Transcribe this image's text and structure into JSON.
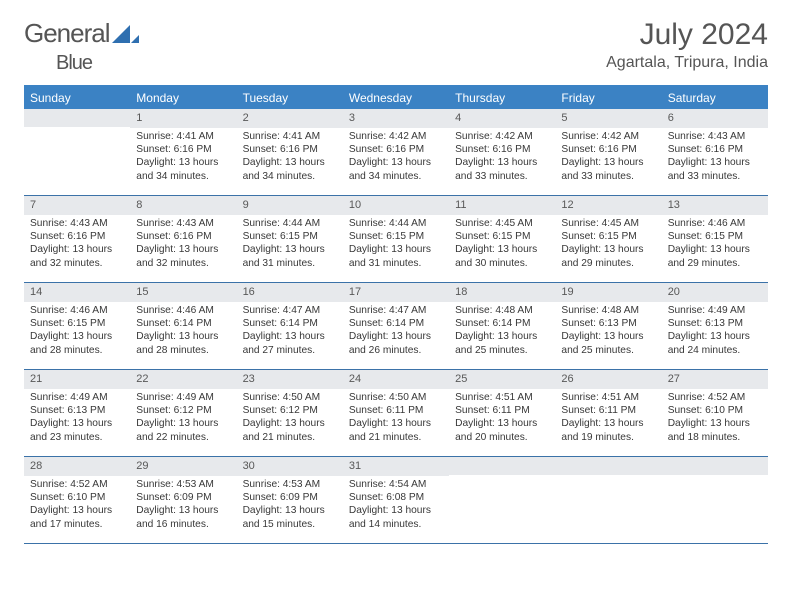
{
  "logo": {
    "word1": "General",
    "word2": "Blue"
  },
  "title": "July 2024",
  "location": "Agartala, Tripura, India",
  "colors": {
    "header_bg": "#3b82c4",
    "header_text": "#ffffff",
    "daynum_bg": "#e7e9ec",
    "daynum_text": "#585858",
    "body_text": "#383838",
    "rule": "#3b72a8",
    "logo_triangle": "#2f6fb0",
    "title_text": "#555555"
  },
  "daynames": [
    "Sunday",
    "Monday",
    "Tuesday",
    "Wednesday",
    "Thursday",
    "Friday",
    "Saturday"
  ],
  "weeks": [
    [
      {
        "d": "",
        "sr": "",
        "ss": "",
        "dl": ""
      },
      {
        "d": "1",
        "sr": "Sunrise: 4:41 AM",
        "ss": "Sunset: 6:16 PM",
        "dl": "Daylight: 13 hours and 34 minutes."
      },
      {
        "d": "2",
        "sr": "Sunrise: 4:41 AM",
        "ss": "Sunset: 6:16 PM",
        "dl": "Daylight: 13 hours and 34 minutes."
      },
      {
        "d": "3",
        "sr": "Sunrise: 4:42 AM",
        "ss": "Sunset: 6:16 PM",
        "dl": "Daylight: 13 hours and 34 minutes."
      },
      {
        "d": "4",
        "sr": "Sunrise: 4:42 AM",
        "ss": "Sunset: 6:16 PM",
        "dl": "Daylight: 13 hours and 33 minutes."
      },
      {
        "d": "5",
        "sr": "Sunrise: 4:42 AM",
        "ss": "Sunset: 6:16 PM",
        "dl": "Daylight: 13 hours and 33 minutes."
      },
      {
        "d": "6",
        "sr": "Sunrise: 4:43 AM",
        "ss": "Sunset: 6:16 PM",
        "dl": "Daylight: 13 hours and 33 minutes."
      }
    ],
    [
      {
        "d": "7",
        "sr": "Sunrise: 4:43 AM",
        "ss": "Sunset: 6:16 PM",
        "dl": "Daylight: 13 hours and 32 minutes."
      },
      {
        "d": "8",
        "sr": "Sunrise: 4:43 AM",
        "ss": "Sunset: 6:16 PM",
        "dl": "Daylight: 13 hours and 32 minutes."
      },
      {
        "d": "9",
        "sr": "Sunrise: 4:44 AM",
        "ss": "Sunset: 6:15 PM",
        "dl": "Daylight: 13 hours and 31 minutes."
      },
      {
        "d": "10",
        "sr": "Sunrise: 4:44 AM",
        "ss": "Sunset: 6:15 PM",
        "dl": "Daylight: 13 hours and 31 minutes."
      },
      {
        "d": "11",
        "sr": "Sunrise: 4:45 AM",
        "ss": "Sunset: 6:15 PM",
        "dl": "Daylight: 13 hours and 30 minutes."
      },
      {
        "d": "12",
        "sr": "Sunrise: 4:45 AM",
        "ss": "Sunset: 6:15 PM",
        "dl": "Daylight: 13 hours and 29 minutes."
      },
      {
        "d": "13",
        "sr": "Sunrise: 4:46 AM",
        "ss": "Sunset: 6:15 PM",
        "dl": "Daylight: 13 hours and 29 minutes."
      }
    ],
    [
      {
        "d": "14",
        "sr": "Sunrise: 4:46 AM",
        "ss": "Sunset: 6:15 PM",
        "dl": "Daylight: 13 hours and 28 minutes."
      },
      {
        "d": "15",
        "sr": "Sunrise: 4:46 AM",
        "ss": "Sunset: 6:14 PM",
        "dl": "Daylight: 13 hours and 28 minutes."
      },
      {
        "d": "16",
        "sr": "Sunrise: 4:47 AM",
        "ss": "Sunset: 6:14 PM",
        "dl": "Daylight: 13 hours and 27 minutes."
      },
      {
        "d": "17",
        "sr": "Sunrise: 4:47 AM",
        "ss": "Sunset: 6:14 PM",
        "dl": "Daylight: 13 hours and 26 minutes."
      },
      {
        "d": "18",
        "sr": "Sunrise: 4:48 AM",
        "ss": "Sunset: 6:14 PM",
        "dl": "Daylight: 13 hours and 25 minutes."
      },
      {
        "d": "19",
        "sr": "Sunrise: 4:48 AM",
        "ss": "Sunset: 6:13 PM",
        "dl": "Daylight: 13 hours and 25 minutes."
      },
      {
        "d": "20",
        "sr": "Sunrise: 4:49 AM",
        "ss": "Sunset: 6:13 PM",
        "dl": "Daylight: 13 hours and 24 minutes."
      }
    ],
    [
      {
        "d": "21",
        "sr": "Sunrise: 4:49 AM",
        "ss": "Sunset: 6:13 PM",
        "dl": "Daylight: 13 hours and 23 minutes."
      },
      {
        "d": "22",
        "sr": "Sunrise: 4:49 AM",
        "ss": "Sunset: 6:12 PM",
        "dl": "Daylight: 13 hours and 22 minutes."
      },
      {
        "d": "23",
        "sr": "Sunrise: 4:50 AM",
        "ss": "Sunset: 6:12 PM",
        "dl": "Daylight: 13 hours and 21 minutes."
      },
      {
        "d": "24",
        "sr": "Sunrise: 4:50 AM",
        "ss": "Sunset: 6:11 PM",
        "dl": "Daylight: 13 hours and 21 minutes."
      },
      {
        "d": "25",
        "sr": "Sunrise: 4:51 AM",
        "ss": "Sunset: 6:11 PM",
        "dl": "Daylight: 13 hours and 20 minutes."
      },
      {
        "d": "26",
        "sr": "Sunrise: 4:51 AM",
        "ss": "Sunset: 6:11 PM",
        "dl": "Daylight: 13 hours and 19 minutes."
      },
      {
        "d": "27",
        "sr": "Sunrise: 4:52 AM",
        "ss": "Sunset: 6:10 PM",
        "dl": "Daylight: 13 hours and 18 minutes."
      }
    ],
    [
      {
        "d": "28",
        "sr": "Sunrise: 4:52 AM",
        "ss": "Sunset: 6:10 PM",
        "dl": "Daylight: 13 hours and 17 minutes."
      },
      {
        "d": "29",
        "sr": "Sunrise: 4:53 AM",
        "ss": "Sunset: 6:09 PM",
        "dl": "Daylight: 13 hours and 16 minutes."
      },
      {
        "d": "30",
        "sr": "Sunrise: 4:53 AM",
        "ss": "Sunset: 6:09 PM",
        "dl": "Daylight: 13 hours and 15 minutes."
      },
      {
        "d": "31",
        "sr": "Sunrise: 4:54 AM",
        "ss": "Sunset: 6:08 PM",
        "dl": "Daylight: 13 hours and 14 minutes."
      },
      {
        "d": "",
        "sr": "",
        "ss": "",
        "dl": ""
      },
      {
        "d": "",
        "sr": "",
        "ss": "",
        "dl": ""
      },
      {
        "d": "",
        "sr": "",
        "ss": "",
        "dl": ""
      }
    ]
  ]
}
